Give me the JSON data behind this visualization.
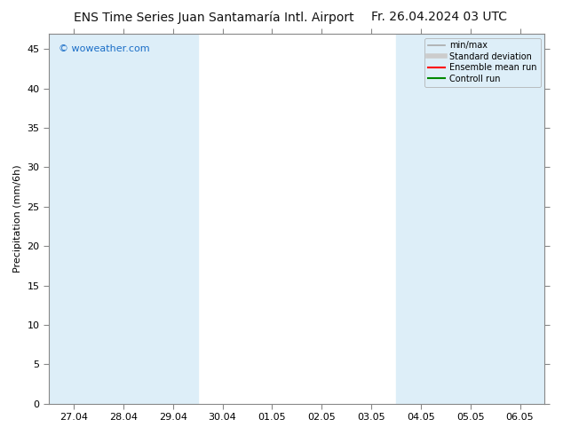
{
  "title_left": "ENS Time Series Juan Santamaría Intl. Airport",
  "title_right": "Fr. 26.04.2024 03 UTC",
  "ylabel": "Precipitation (mm/6h)",
  "watermark": "© woweather.com",
  "watermark_color": "#1a6ec7",
  "bg_color": "#ffffff",
  "plot_bg_color": "#ffffff",
  "ylim": [
    0,
    47
  ],
  "yticks": [
    0,
    5,
    10,
    15,
    20,
    25,
    30,
    35,
    40,
    45
  ],
  "xtick_labels": [
    "27.04",
    "28.04",
    "29.04",
    "30.04",
    "01.05",
    "02.05",
    "03.05",
    "04.05",
    "05.05",
    "06.05"
  ],
  "n_xticks": 10,
  "shaded_x_indices": [
    0,
    2,
    4,
    6,
    8,
    9
  ],
  "band_color": "#ddeef8",
  "legend_entries": [
    {
      "label": "min/max",
      "color": "#aaaaaa",
      "lw": 1.2
    },
    {
      "label": "Standard deviation",
      "color": "#cccccc",
      "lw": 4
    },
    {
      "label": "Ensemble mean run",
      "color": "#ff0000",
      "lw": 1.5
    },
    {
      "label": "Controll run",
      "color": "#008800",
      "lw": 1.5
    }
  ],
  "title_fontsize": 10,
  "ylabel_fontsize": 8,
  "tick_fontsize": 8,
  "watermark_fontsize": 8,
  "legend_fontsize": 7,
  "legend_bg": "#ddeef8",
  "spine_color": "#888888"
}
